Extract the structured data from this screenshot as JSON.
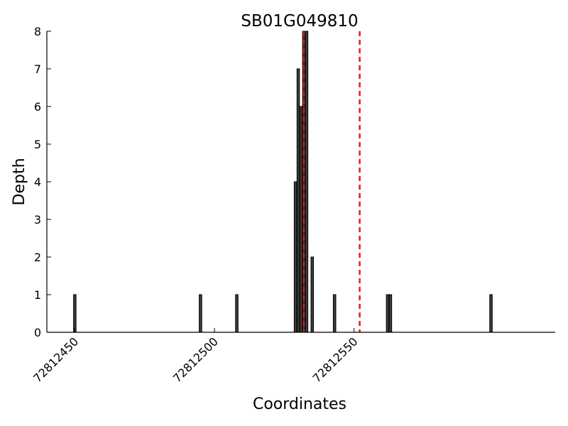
{
  "chart_data": {
    "type": "bar",
    "title": "SB01G049810",
    "xlabel": "Coordinates",
    "ylabel": "Depth",
    "xlim": [
      72812440,
      72812622
    ],
    "ylim": [
      0,
      8
    ],
    "x_ticks": [
      72812450,
      72812500,
      72812550
    ],
    "x_tick_labels": [
      "72812450",
      "72812500",
      "72812550"
    ],
    "y_ticks": [
      0,
      1,
      2,
      3,
      4,
      5,
      6,
      7,
      8
    ],
    "y_tick_labels": [
      "0",
      "1",
      "2",
      "3",
      "4",
      "5",
      "6",
      "7",
      "8"
    ],
    "grid": false,
    "series": [
      {
        "x": [
          72812450,
          72812495,
          72812508,
          72812529,
          72812530,
          72812531,
          72812532,
          72812533,
          72812535,
          72812543,
          72812562,
          72812563,
          72812599
        ],
        "values": [
          1,
          1,
          1,
          4,
          7,
          6,
          8,
          8,
          2,
          1,
          1,
          1,
          1
        ]
      }
    ],
    "bar_color": "#3d3d3d",
    "reference_lines": [
      {
        "x": 72812532,
        "color": "#e8191a",
        "style": "dashed"
      },
      {
        "x": 72812552,
        "color": "#e8191a",
        "style": "dashed"
      }
    ]
  }
}
